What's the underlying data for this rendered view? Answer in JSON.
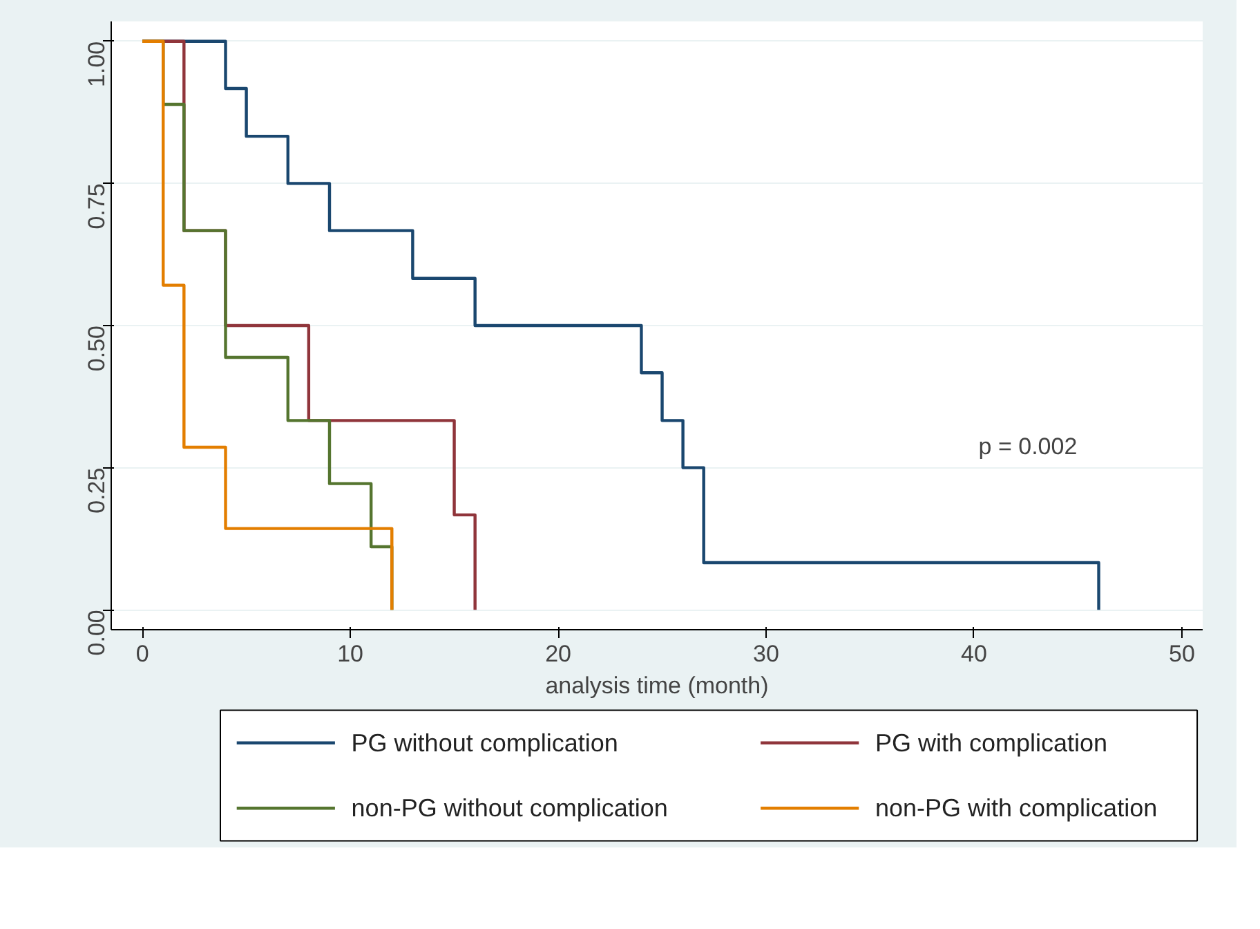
{
  "chart_data": {
    "type": "step",
    "xlabel": "analysis time (month)",
    "xlim": [
      -1.5,
      51
    ],
    "xticks": [
      0,
      10,
      20,
      30,
      40,
      50
    ],
    "ylim": [
      -0.035,
      1.035
    ],
    "yticks": [
      {
        "value": 0,
        "label": "0.00"
      },
      {
        "value": 0.25,
        "label": "0.25"
      },
      {
        "value": 0.5,
        "label": "0.50"
      },
      {
        "value": 0.75,
        "label": "0.75"
      },
      {
        "value": 1,
        "label": "1.00"
      }
    ],
    "grid": "y",
    "legend": "bottom",
    "line_style": "solid",
    "marker": "none",
    "annotations": [
      "p = 0.002"
    ],
    "series": [
      {
        "name": "PG without complication",
        "color": "#1a476f",
        "x": [
          0,
          4,
          5,
          7,
          9,
          13,
          16,
          24,
          25,
          26,
          27,
          46
        ],
        "values": [
          1,
          0.917,
          0.833,
          0.75,
          0.667,
          0.583,
          0.5,
          0.417,
          0.333,
          0.25,
          0.083,
          0
        ]
      },
      {
        "name": "PG with complication",
        "color": "#90353b",
        "x": [
          0,
          2,
          4,
          8,
          15,
          16
        ],
        "values": [
          1,
          0.667,
          0.5,
          0.333,
          0.167,
          0
        ]
      },
      {
        "name": "non-PG without complication",
        "color": "#55752f",
        "x": [
          0,
          1,
          2,
          4,
          7,
          9,
          11,
          12
        ],
        "values": [
          1,
          0.889,
          0.667,
          0.444,
          0.333,
          0.222,
          0.111,
          0
        ]
      },
      {
        "name": "non-PG with complication",
        "color": "#e37e00",
        "x": [
          0,
          1,
          2,
          4,
          12
        ],
        "values": [
          1,
          0.571,
          0.286,
          0.143,
          0
        ]
      }
    ]
  }
}
